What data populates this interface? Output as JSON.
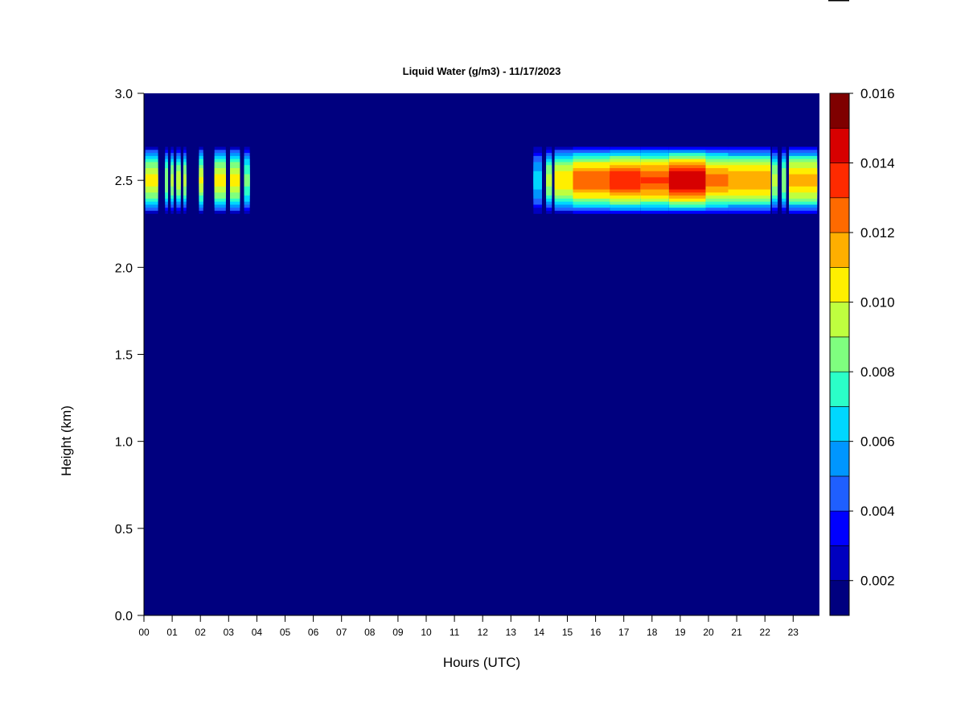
{
  "chart_data": {
    "type": "heatmap",
    "title": "Liquid Water (g/m3) - 11/17/2023",
    "xlabel": "Hours (UTC)",
    "ylabel": "Height (km)",
    "x_ticks": [
      "00",
      "01",
      "02",
      "03",
      "04",
      "05",
      "06",
      "07",
      "08",
      "09",
      "10",
      "11",
      "12",
      "13",
      "14",
      "15",
      "16",
      "17",
      "18",
      "19",
      "20",
      "21",
      "22",
      "23"
    ],
    "y_ticks": [
      "0.0",
      "0.5",
      "1.0",
      "1.5",
      "2.0",
      "2.5",
      "3.0"
    ],
    "xlim": [
      0,
      23.85
    ],
    "ylim": [
      0,
      3.0
    ],
    "colorbar": {
      "ticks": [
        "0.002",
        "0.004",
        "0.006",
        "0.008",
        "0.010",
        "0.012",
        "0.014",
        "0.016"
      ],
      "range": [
        0.001,
        0.016
      ],
      "levels": 15,
      "colors": [
        "#00007F",
        "#0000BF",
        "#0000FF",
        "#1F5FFF",
        "#0096FF",
        "#00D7FF",
        "#2BFFC8",
        "#7FFF7F",
        "#BFFF3F",
        "#FFEF00",
        "#FFAF00",
        "#FF6A00",
        "#FF2A00",
        "#D70000",
        "#7F0000"
      ]
    },
    "cloud_layer": {
      "center_km": 2.5,
      "half_thickness_km": 0.21,
      "segments": [
        {
          "start": 0.05,
          "end": 0.5,
          "peak": 0.01
        },
        {
          "start": 0.75,
          "end": 0.85,
          "peak": 0.0085
        },
        {
          "start": 0.95,
          "end": 1.05,
          "peak": 0.009
        },
        {
          "start": 1.15,
          "end": 1.3,
          "peak": 0.0092
        },
        {
          "start": 1.4,
          "end": 1.5,
          "peak": 0.009
        },
        {
          "start": 1.95,
          "end": 2.1,
          "peak": 0.0098
        },
        {
          "start": 2.5,
          "end": 2.9,
          "peak": 0.01
        },
        {
          "start": 3.05,
          "end": 3.4,
          "peak": 0.01
        },
        {
          "start": 3.55,
          "end": 3.75,
          "peak": 0.008
        },
        {
          "start": 13.8,
          "end": 14.1,
          "peak": 0.006
        },
        {
          "start": 14.25,
          "end": 14.45,
          "peak": 0.009
        },
        {
          "start": 14.55,
          "end": 15.2,
          "peak": 0.0105
        },
        {
          "start": 15.2,
          "end": 16.5,
          "peak": 0.0125
        },
        {
          "start": 16.5,
          "end": 17.6,
          "peak": 0.0135
        },
        {
          "start": 17.6,
          "end": 18.6,
          "peak": 0.0128
        },
        {
          "start": 18.6,
          "end": 19.9,
          "peak": 0.0145
        },
        {
          "start": 19.9,
          "end": 20.7,
          "peak": 0.0122
        },
        {
          "start": 20.7,
          "end": 22.2,
          "peak": 0.0115
        },
        {
          "start": 22.25,
          "end": 22.45,
          "peak": 0.009
        },
        {
          "start": 22.6,
          "end": 22.75,
          "peak": 0.0085
        },
        {
          "start": 22.85,
          "end": 23.85,
          "peak": 0.0112
        }
      ]
    }
  }
}
